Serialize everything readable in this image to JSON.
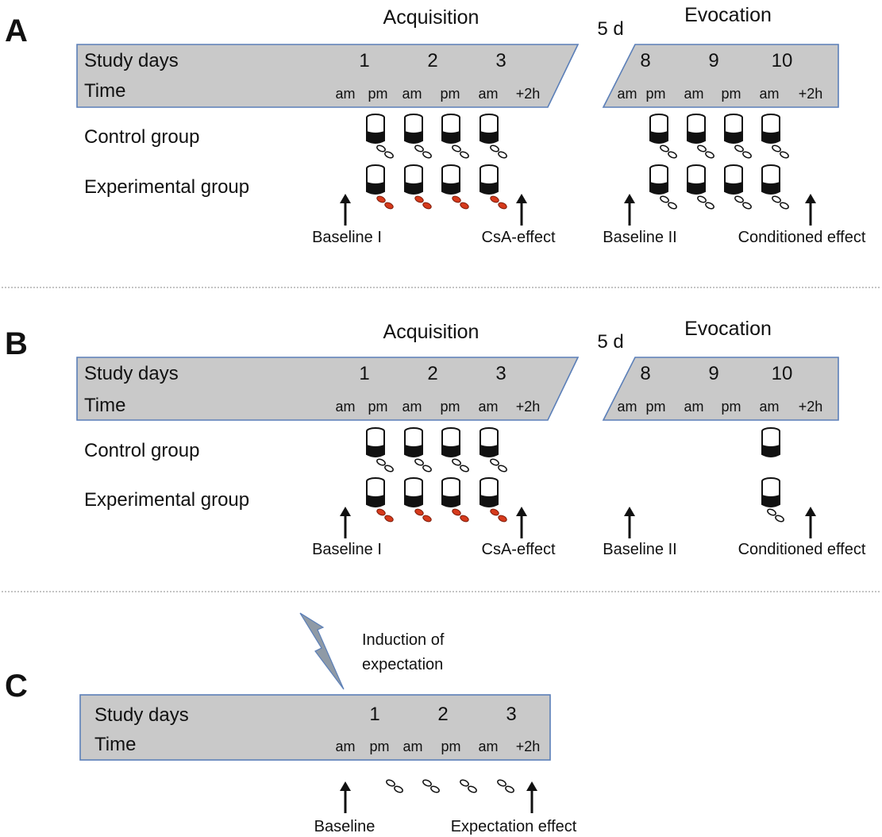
{
  "panels": [
    {
      "letter": "A",
      "acquisition_title": "Acquisition",
      "evocation_title": "Evocation",
      "gap_label": "5 d",
      "study_days_label": "Study days",
      "time_label": "Time",
      "days_left": [
        "1",
        "2",
        "3"
      ],
      "days_right": [
        "8",
        "9",
        "10"
      ],
      "times_left": [
        "am",
        "pm",
        "am",
        "pm",
        "am",
        "+2h"
      ],
      "times_right": [
        "am",
        "pm",
        "am",
        "pm",
        "am",
        "+2h"
      ],
      "control_group_label": "Control group",
      "experimental_group_label": "Experimental group",
      "arrows": [
        "Baseline I",
        "CsA-effect",
        "Baseline II",
        "Conditioned effect"
      ],
      "control_drinks_right_count": 4,
      "experimental_drinks_right_count": 4
    },
    {
      "letter": "B",
      "acquisition_title": "Acquisition",
      "evocation_title": "Evocation",
      "gap_label": "5 d",
      "study_days_label": "Study days",
      "time_label": "Time",
      "days_left": [
        "1",
        "2",
        "3"
      ],
      "days_right": [
        "8",
        "9",
        "10"
      ],
      "times_left": [
        "am",
        "pm",
        "am",
        "pm",
        "am",
        "+2h"
      ],
      "times_right": [
        "am",
        "pm",
        "am",
        "pm",
        "am",
        "+2h"
      ],
      "control_group_label": "Control group",
      "experimental_group_label": "Experimental group",
      "arrows": [
        "Baseline I",
        "CsA-effect",
        "Baseline II",
        "Conditioned effect"
      ],
      "control_drinks_right_count": 1,
      "experimental_drinks_right_count": 1
    },
    {
      "letter": "C",
      "induction_label_line1": "Induction of",
      "induction_label_line2": "expectation",
      "study_days_label": "Study days",
      "time_label": "Time",
      "days": [
        "1",
        "2",
        "3"
      ],
      "times": [
        "am",
        "pm",
        "am",
        "pm",
        "am",
        "+2h"
      ],
      "arrows": [
        "Baseline",
        "Expectation effect"
      ],
      "pill_count": 4
    }
  ],
  "colors": {
    "band_fill": "#c9c9c9",
    "band_border": "#5b7fb8",
    "drug_pill": "#d63a1c",
    "placebo_pill": "#ffffff",
    "lightning": "#8f9aa6"
  }
}
